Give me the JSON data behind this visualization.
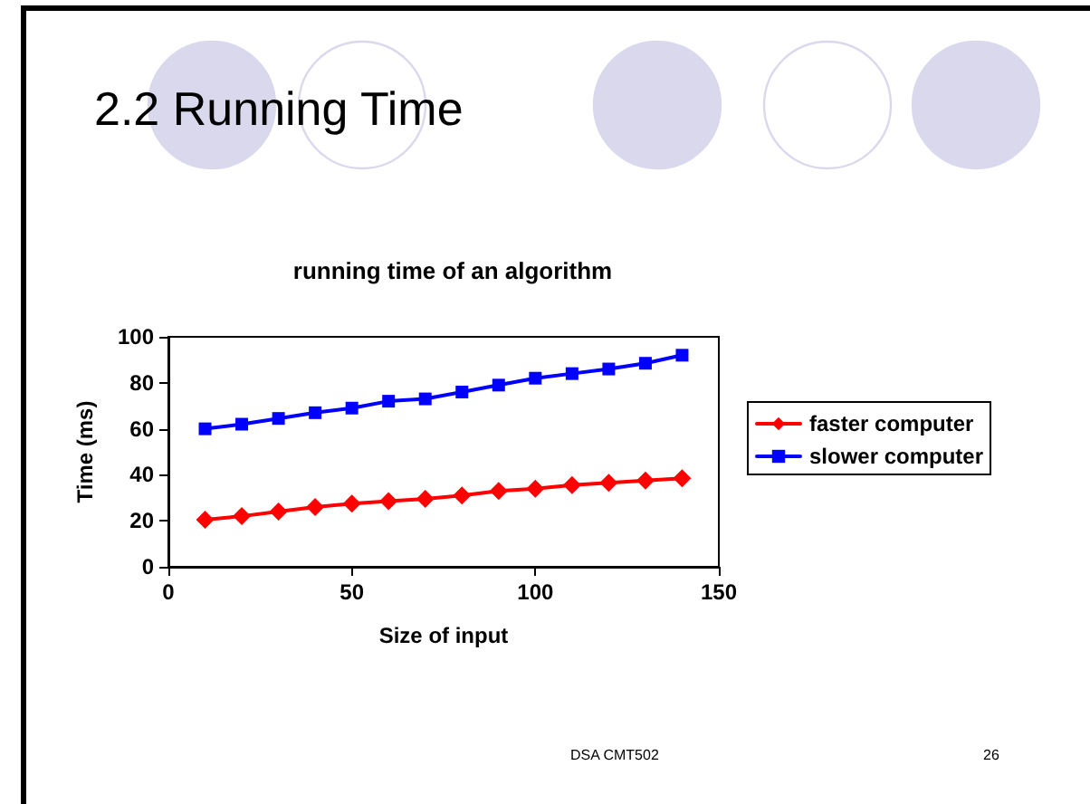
{
  "chart_data": {
    "type": "line",
    "title": "2.2 Running Time",
    "subtitle": "running time of an algorithm",
    "xlabel": "Size of input",
    "ylabel": "Time (ms)",
    "x": [
      10,
      20,
      30,
      40,
      50,
      60,
      70,
      80,
      90,
      100,
      110,
      120,
      130,
      140
    ],
    "series": [
      {
        "name": "faster computer",
        "color": "#ff0000",
        "marker": "diamond",
        "values": [
          20.5,
          22,
          24,
          26,
          27.5,
          28.5,
          29.5,
          31,
          33,
          34,
          35.5,
          36.5,
          37.5,
          38.5
        ]
      },
      {
        "name": "slower computer",
        "color": "#0000ff",
        "marker": "square",
        "values": [
          60,
          62,
          64.5,
          67,
          69,
          72,
          73,
          76,
          79,
          82,
          84,
          86,
          88.5,
          92
        ]
      }
    ],
    "xlim": [
      0,
      150
    ],
    "xticks": [
      0,
      50,
      100,
      150
    ],
    "ylim": [
      0,
      100
    ],
    "yticks": [
      0,
      20,
      40,
      60,
      80,
      100
    ],
    "grid": false,
    "legend": "right",
    "line_style": "solid",
    "annotations": [
      "DSA CMT502",
      "26"
    ]
  }
}
